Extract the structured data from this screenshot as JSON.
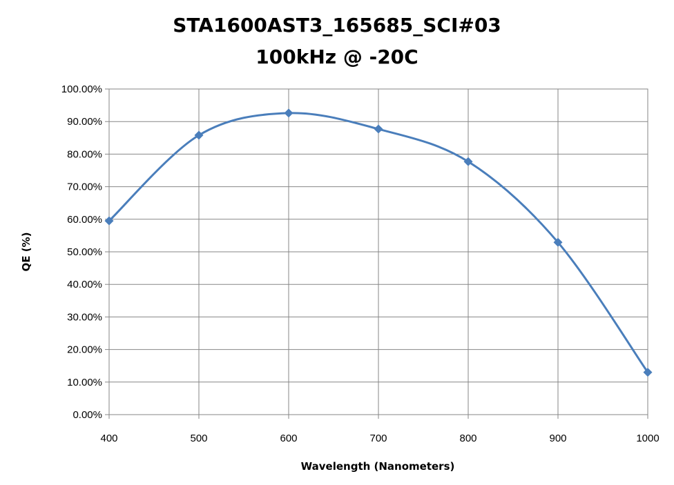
{
  "chart_data": {
    "type": "line",
    "title": "STA1600AST3_165685_SCI#03",
    "subtitle": "100kHz @ -20C",
    "xlabel": "Wavelength (Nanometers)",
    "ylabel": "QE (%)",
    "xlim": [
      400,
      1000
    ],
    "ylim": [
      0,
      100
    ],
    "x_ticks": [
      "400",
      "500",
      "600",
      "700",
      "800",
      "900",
      "1000"
    ],
    "y_ticks": [
      "0.00%",
      "10.00%",
      "20.00%",
      "30.00%",
      "40.00%",
      "50.00%",
      "60.00%",
      "70.00%",
      "80.00%",
      "90.00%",
      "100.00%"
    ],
    "grid": true,
    "legend": "none",
    "smooth": true,
    "marker": "diamond",
    "series": [
      {
        "x": [
          400,
          500,
          600,
          700,
          800,
          900,
          1000
        ],
        "values": [
          59.5,
          85.8,
          92.6,
          87.7,
          77.7,
          52.9,
          13.0
        ],
        "color": "#4a7ebb"
      }
    ]
  }
}
